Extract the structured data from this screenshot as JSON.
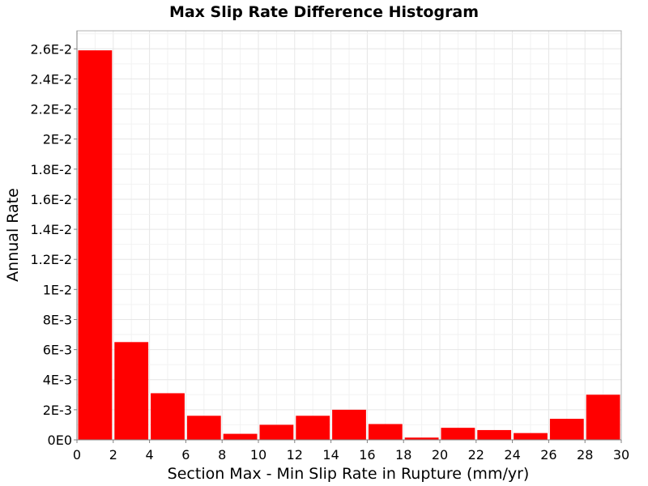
{
  "chart_data": {
    "type": "bar",
    "title": "Max Slip Rate Difference Histogram",
    "xlabel": "Section Max - Min Slip Rate in Rupture (mm/yr)",
    "ylabel": "Annual Rate",
    "xlim": [
      0,
      30
    ],
    "ylim": [
      0,
      0.0272
    ],
    "bin_width": 2,
    "x": [
      1,
      3,
      5,
      7,
      9,
      11,
      13,
      15,
      17,
      19,
      21,
      23,
      25,
      27,
      29
    ],
    "values": [
      0.0259,
      0.0065,
      0.0031,
      0.0016,
      0.0004,
      0.001,
      0.0016,
      0.002,
      0.00105,
      0.00015,
      0.0008,
      0.00065,
      0.00045,
      0.0014,
      0.003
    ],
    "x_ticks": [
      "0",
      "2",
      "4",
      "6",
      "8",
      "10",
      "12",
      "14",
      "16",
      "18",
      "20",
      "22",
      "24",
      "26",
      "28",
      "30"
    ],
    "y_ticks": [
      "0E0",
      "2E-3",
      "4E-3",
      "6E-3",
      "8E-3",
      "1E-2",
      "1.2E-2",
      "1.4E-2",
      "1.6E-2",
      "1.8E-2",
      "2E-2",
      "2.2E-2",
      "2.4E-2",
      "2.6E-2"
    ],
    "grid": true,
    "colors": {
      "bar": "#ff0000",
      "grid": "#e6e6e6",
      "plot_border": "#b0b0b0",
      "axis": "#808080"
    }
  }
}
